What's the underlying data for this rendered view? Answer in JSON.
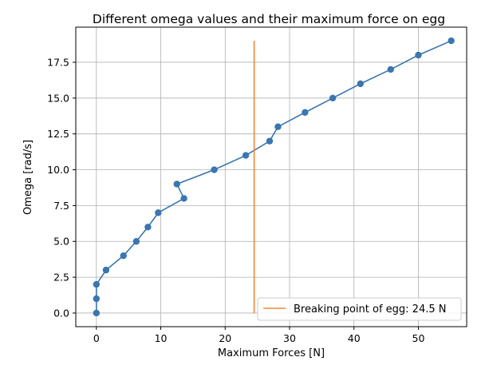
{
  "chart_data": {
    "type": "line",
    "title": "Different omega values and their maximum force on egg",
    "xlabel": "Maximum Forces [N]",
    "ylabel": "Omega [rad/s]",
    "xlim": [
      -3.2,
      57.5
    ],
    "ylim": [
      -0.95,
      19.95
    ],
    "xticks": [
      0,
      10,
      20,
      30,
      40,
      50
    ],
    "yticks": [
      0.0,
      2.5,
      5.0,
      7.5,
      10.0,
      12.5,
      15.0,
      17.5
    ],
    "xtick_labels": [
      "0",
      "10",
      "20",
      "30",
      "40",
      "50"
    ],
    "ytick_labels": [
      "0.0",
      "2.5",
      "5.0",
      "7.5",
      "10.0",
      "12.5",
      "15.0",
      "17.5"
    ],
    "grid": true,
    "legend_position": "bottom-right",
    "series": [
      {
        "kind": "line-markers",
        "color": "#3a76af",
        "points": [
          [
            0,
            0
          ],
          [
            0,
            1
          ],
          [
            0,
            2
          ],
          [
            1.5,
            3
          ],
          [
            4.2,
            4
          ],
          [
            6.2,
            5
          ],
          [
            8.0,
            6
          ],
          [
            9.6,
            7
          ],
          [
            13.6,
            8
          ],
          [
            12.5,
            9
          ],
          [
            18.3,
            10
          ],
          [
            23.2,
            11
          ],
          [
            26.9,
            12
          ],
          [
            28.2,
            13
          ],
          [
            32.4,
            14
          ],
          [
            36.7,
            15
          ],
          [
            41.0,
            16
          ],
          [
            45.7,
            17
          ],
          [
            50.0,
            18
          ],
          [
            55.1,
            19
          ]
        ]
      },
      {
        "name": "Breaking point of egg: 24.5 N",
        "kind": "vline",
        "color": "#ef8636",
        "x": 24.5,
        "y_range": [
          0,
          19
        ]
      }
    ]
  }
}
